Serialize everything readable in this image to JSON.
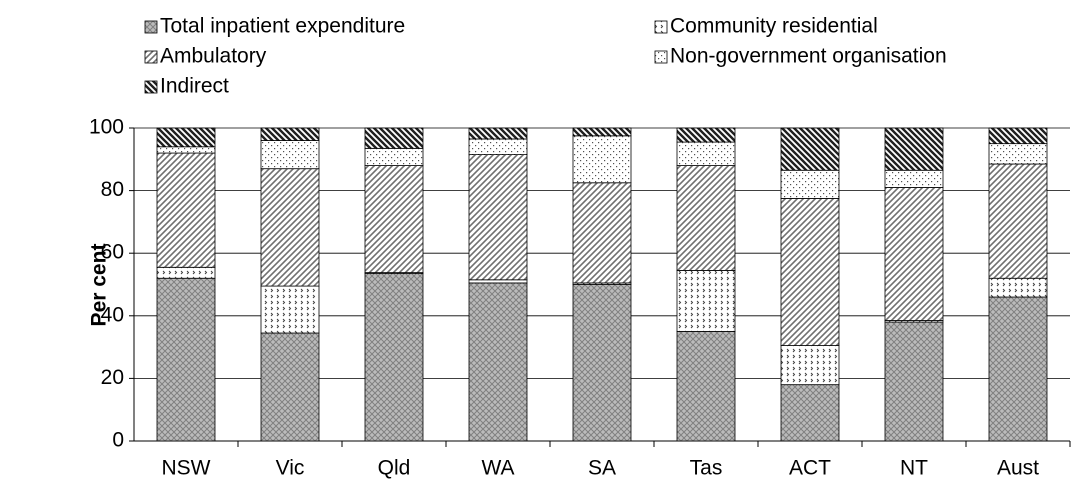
{
  "chart_data": {
    "type": "stacked_bar",
    "y_label": "Per cent",
    "categories": [
      "NSW",
      "Vic",
      "Qld",
      "WA",
      "SA",
      "Tas",
      "ACT",
      "NT",
      "Aust"
    ],
    "series": [
      {
        "name": "Total inpatient expenditure",
        "color": "#808080",
        "values": [
          52,
          34.5,
          53.5,
          50.5,
          50,
          35,
          18,
          38,
          46
        ]
      },
      {
        "name": "Community residential",
        "color": "#404040",
        "values": [
          3.5,
          15,
          0.3,
          1,
          0.5,
          19.5,
          12.5,
          0.5,
          6
        ]
      },
      {
        "name": "Ambulatory",
        "color": "#707070",
        "values": [
          36.5,
          37.5,
          34.2,
          40,
          32,
          33.5,
          47,
          42.5,
          36.5
        ]
      },
      {
        "name": "Non-government organisation",
        "color": "#505050",
        "values": [
          2,
          9,
          5.5,
          5,
          15,
          7.5,
          9,
          5.5,
          6.5
        ]
      },
      {
        "name": "Indirect",
        "color": "#202020",
        "values": [
          6,
          4,
          6.5,
          3.5,
          2.5,
          4.5,
          13.5,
          13.5,
          5
        ]
      }
    ],
    "ylim": [
      0,
      100
    ],
    "yticks": [
      0,
      20,
      40,
      60,
      80,
      100
    ],
    "grid": true
  }
}
